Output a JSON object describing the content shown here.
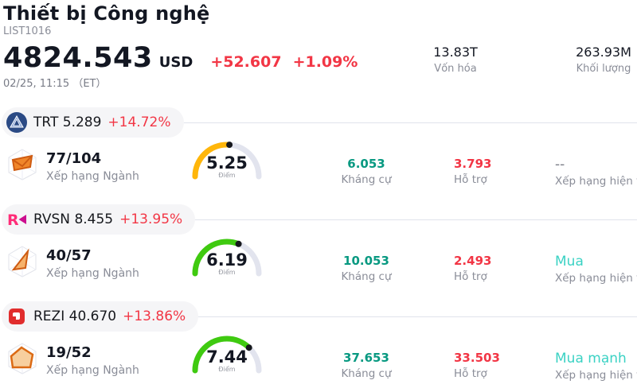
{
  "header": {
    "title": "Thiết bị Công nghệ",
    "list_id": "LIST1016",
    "price": "4824.543",
    "currency": "USD",
    "change_abs": "+52.607",
    "change_pct": "+1.09%",
    "datetime": "02/25, 11:15 （ET）",
    "stats": [
      {
        "value": "13.83T",
        "label": "Vốn hóa"
      },
      {
        "value": "263.93M",
        "label": "Khối lượng"
      }
    ]
  },
  "labels": {
    "industry_rank": "Xếp hạng Ngành",
    "score": "Điểm",
    "resistance": "Kháng cự",
    "support": "Hỗ trợ",
    "current_rating": "Xếp hạng hiện tại"
  },
  "colors": {
    "change_red": "#f23645",
    "resistance_green": "#089981",
    "support_red": "#f23645",
    "rating_teal": "#3bd2c4",
    "muted_gray": "#787b86",
    "gauge_track": "#e2e4ee"
  },
  "rows": [
    {
      "ticker": "TRT",
      "price": "5.289",
      "change_pct": "+14.72%",
      "rank": "77/104",
      "score": "5.25",
      "score_value": 5.25,
      "gauge_color": "#ffb60a",
      "resistance": "6.053",
      "support": "3.793",
      "rating": "--",
      "rating_color": "#787b86"
    },
    {
      "ticker": "RVSN",
      "price": "8.455",
      "change_pct": "+13.95%",
      "rank": "40/57",
      "score": "6.19",
      "score_value": 6.19,
      "gauge_color": "#3fca10",
      "resistance": "10.053",
      "support": "2.493",
      "rating": "Mua",
      "rating_color": "#3bd2c4"
    },
    {
      "ticker": "REZI",
      "price": "40.670",
      "change_pct": "+13.86%",
      "rank": "19/52",
      "score": "7.44",
      "score_value": 7.44,
      "gauge_color": "#3fca10",
      "resistance": "37.653",
      "support": "33.503",
      "rating": "Mua mạnh",
      "rating_color": "#3bd2c4"
    }
  ]
}
